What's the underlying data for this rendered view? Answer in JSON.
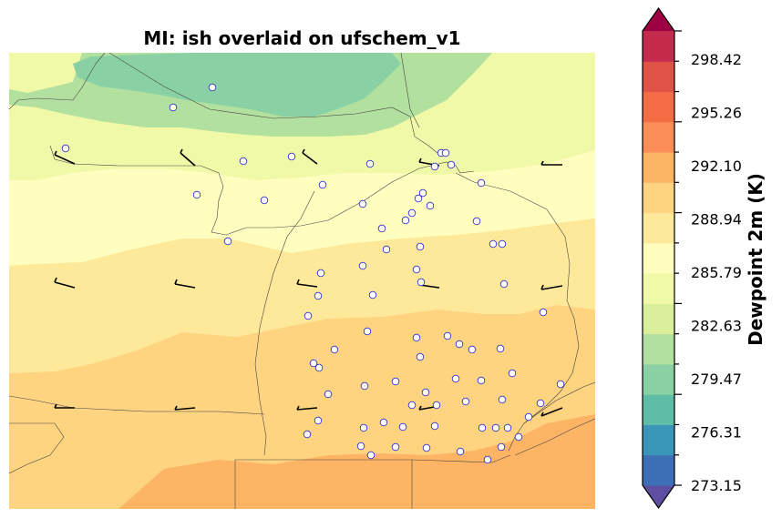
{
  "title": "MI: ish overlaid on ufschem_v1",
  "colorbar": {
    "label": "Dewpoint 2m (K)",
    "ticks": [
      "298.42",
      "295.26",
      "292.10",
      "288.94",
      "285.79",
      "282.63",
      "279.47",
      "276.31",
      "273.15"
    ],
    "colors": [
      "#5e4fa2",
      "#3d6fb6",
      "#3b95b8",
      "#5fbca6",
      "#89d1a4",
      "#b2e09e",
      "#d9ef9b",
      "#f0f9a8",
      "#fffebe",
      "#fee99a",
      "#fed481",
      "#fdb465",
      "#fb8d59",
      "#f36c43",
      "#e05146",
      "#c42a4b",
      "#9e0142"
    ]
  },
  "map": {
    "contour_colors": {
      "c1": "#89d1a4",
      "c2": "#b2e09e",
      "c3": "#f0f9a8",
      "c4": "#fffebe",
      "c5": "#fee99a",
      "c6": "#fed481",
      "c7": "#fdb465"
    },
    "station_marker_color": "#3333cc",
    "wind_barbs_count": 15
  }
}
